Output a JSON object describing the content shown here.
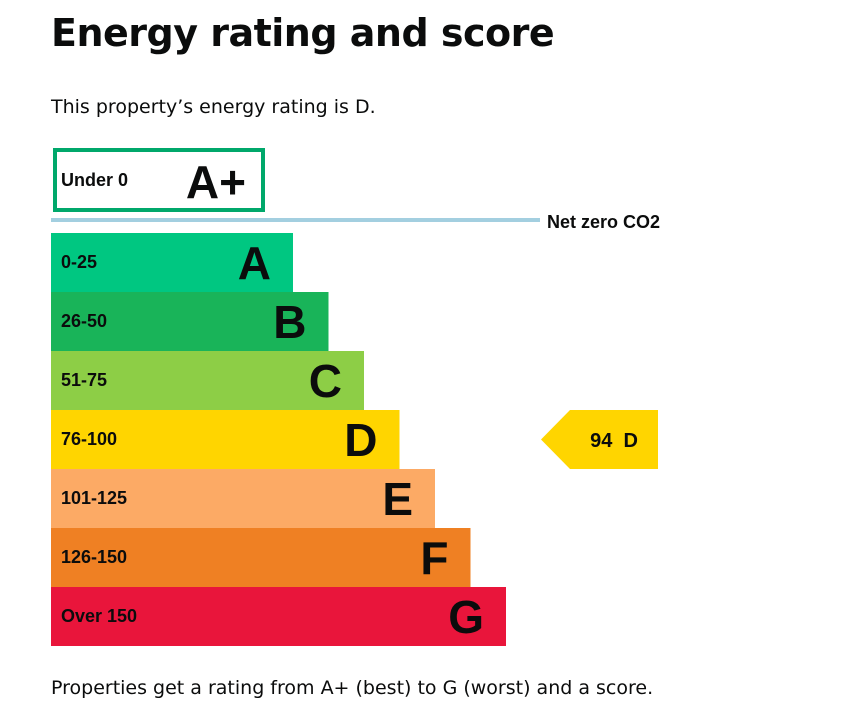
{
  "page": {
    "title": "Energy rating and score",
    "intro": "This property’s energy rating is D.",
    "footer": "Properties get a rating from A+ (best) to G (worst) and a score."
  },
  "chart_data": {
    "type": "bar",
    "top_band": {
      "range": "Under 0",
      "letter": "A+",
      "color": "#00a86b"
    },
    "net_zero_label": "Net zero CO2",
    "net_zero_line_color": "#a3cfe0",
    "bands": [
      {
        "range": "0-25",
        "letter": "A",
        "color": "#00c781"
      },
      {
        "range": "26-50",
        "letter": "B",
        "color": "#19b459"
      },
      {
        "range": "51-75",
        "letter": "C",
        "color": "#8dce46"
      },
      {
        "range": "76-100",
        "letter": "D",
        "color": "#ffd500"
      },
      {
        "range": "101-125",
        "letter": "E",
        "color": "#fcaa65"
      },
      {
        "range": "126-150",
        "letter": "F",
        "color": "#ef8023"
      },
      {
        "range": "Over 150",
        "letter": "G",
        "color": "#e9153b"
      }
    ],
    "current": {
      "score": 94,
      "rating": "D",
      "label": "94  D",
      "color": "#ffd500"
    }
  }
}
